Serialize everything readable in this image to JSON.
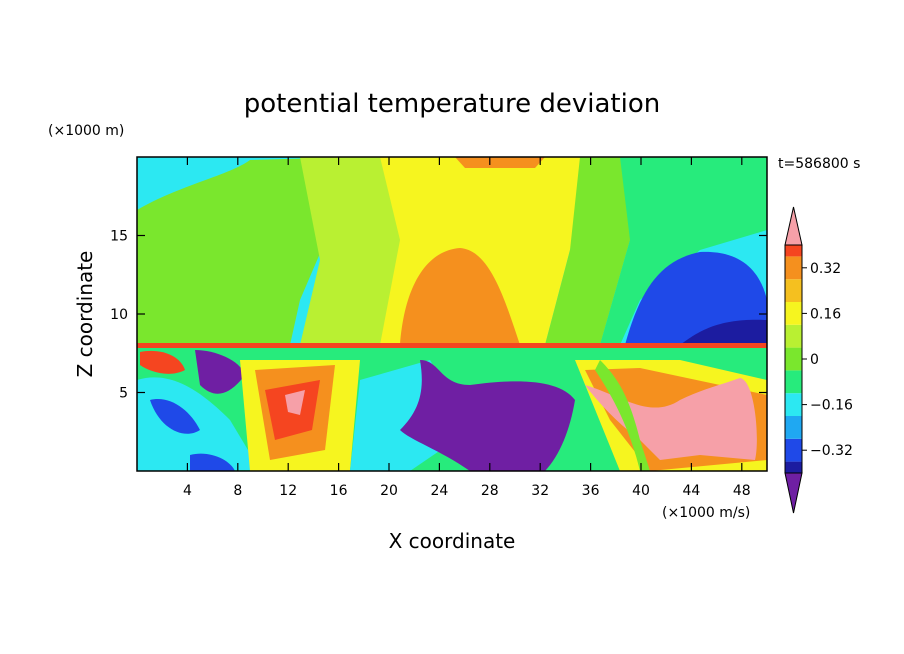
{
  "chart_data": {
    "type": "heatmap",
    "title": "potential temperature deviation",
    "xlabel": "X coordinate",
    "ylabel": "Z coordinate",
    "x_unit": "(×1000 m/s)",
    "y_unit": "(×1000 m)",
    "time_label": "t=586800 s",
    "xlim": [
      0,
      50
    ],
    "ylim": [
      0,
      20
    ],
    "x_ticks": [
      4,
      8,
      12,
      16,
      20,
      24,
      28,
      32,
      36,
      40,
      44,
      48
    ],
    "y_ticks": [
      5,
      10,
      15
    ],
    "grid": false,
    "colorbar": {
      "levels": [
        -0.48,
        -0.4,
        -0.32,
        -0.24,
        -0.16,
        -0.08,
        0,
        0.08,
        0.16,
        0.24,
        0.32,
        0.4,
        0.48
      ],
      "colors": [
        "#6f1fa3",
        "#1c1ca0",
        "#1f49e8",
        "#1fa8f2",
        "#2ce8f2",
        "#27eb7c",
        "#7ae72d",
        "#b9f032",
        "#f6f51f",
        "#f5c01f",
        "#f5901e",
        "#f54520",
        "#f6a0a8"
      ],
      "tick_labels": [
        "0.32",
        "0.16",
        "0",
        "-0.16",
        "-0.32"
      ],
      "tick_values": [
        0.32,
        0.16,
        0,
        -0.16,
        -0.32
      ],
      "extend": "both"
    },
    "regions_note_values": {
      "upper_left_band": 0.0,
      "upper_center_band": 0.16,
      "upper_right_band": -0.16,
      "inversion_height": 8.2
    }
  }
}
